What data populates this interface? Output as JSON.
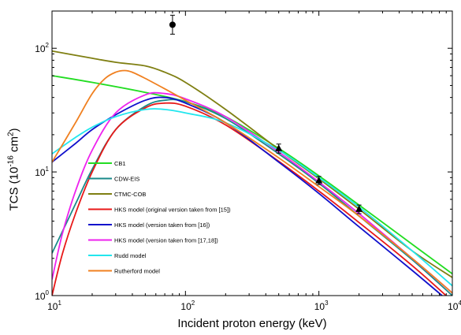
{
  "chart_data": {
    "type": "line",
    "xscale": "log",
    "yscale": "log",
    "xlim": [
      10,
      10000
    ],
    "ylim": [
      1,
      200
    ],
    "xticks": [
      {
        "value": 10,
        "base": "10",
        "exp": "1"
      },
      {
        "value": 100,
        "base": "10",
        "exp": "2"
      },
      {
        "value": 1000,
        "base": "10",
        "exp": "3"
      },
      {
        "value": 10000,
        "base": "10",
        "exp": "4"
      }
    ],
    "yticks": [
      {
        "value": 1,
        "base": "10",
        "exp": "0"
      },
      {
        "value": 10,
        "base": "10",
        "exp": "1"
      },
      {
        "value": 100,
        "base": "10",
        "exp": "2"
      }
    ],
    "xlabel": "Incident proton energy (keV)",
    "ylabel": {
      "text": "TCS (10",
      "exp": "-16",
      "unit": " cm",
      "unit_exp": "2",
      "close": ")"
    },
    "legend_placement": "left-middle",
    "series": [
      {
        "name": "CB1",
        "color": "#22dd22",
        "x": [
          10,
          20,
          50,
          100,
          200,
          500,
          1000,
          2000,
          5000,
          10000
        ],
        "y": [
          60,
          53,
          44,
          37,
          28,
          15.5,
          9.3,
          5.4,
          2.6,
          1.5
        ]
      },
      {
        "name": "CDW-EIS",
        "color": "#1a8a8a",
        "x": [
          10,
          15,
          20,
          30,
          50,
          70,
          100,
          200,
          500,
          1000,
          2000,
          5000,
          10000
        ],
        "y": [
          2.2,
          5.5,
          10.5,
          22,
          34,
          38,
          37,
          27,
          14,
          8.1,
          4.4,
          1.95,
          1.0
        ]
      },
      {
        "name": "CTMC-COB",
        "color": "#7f7f12",
        "x": [
          10,
          20,
          30,
          50,
          70,
          100,
          200,
          500,
          1000,
          2000,
          5000,
          10000
        ],
        "y": [
          95,
          83,
          77,
          72,
          64,
          53,
          32,
          15.2,
          8.8,
          5.0,
          2.3,
          1.4
        ]
      },
      {
        "name": "HKS model (original version taken from [15])",
        "color": "#e81818",
        "x": [
          10,
          12,
          15,
          20,
          30,
          50,
          70,
          100,
          200,
          500,
          1000,
          2000,
          5000,
          10000
        ],
        "y": [
          1.0,
          2.2,
          4.6,
          10,
          22,
          33,
          36,
          34,
          24,
          12.2,
          7.0,
          3.9,
          1.75,
          0.9
        ]
      },
      {
        "name": "HKS model (version taken from [16])",
        "color": "#1010cc",
        "x": [
          10,
          15,
          20,
          30,
          50,
          70,
          100,
          200,
          500,
          1000,
          2000,
          5000,
          10000
        ],
        "y": [
          12,
          17,
          22,
          29,
          38,
          40,
          36,
          25,
          12,
          6.7,
          3.6,
          1.6,
          0.85
        ]
      },
      {
        "name": "HKS model (version taken from [17,18])",
        "color": "#ee22ee",
        "x": [
          10,
          12,
          15,
          20,
          30,
          50,
          70,
          100,
          200,
          500,
          1000,
          2000,
          5000,
          10000
        ],
        "y": [
          1.35,
          3.2,
          7.0,
          15,
          30,
          42,
          43,
          39,
          28,
          14.5,
          8.3,
          4.6,
          2.0,
          1.05
        ]
      },
      {
        "name": "Rudd model",
        "color": "#22e6ee",
        "x": [
          10,
          15,
          20,
          30,
          50,
          70,
          100,
          200,
          500,
          1000,
          2000,
          5000,
          10000
        ],
        "y": [
          14,
          19,
          23,
          28,
          32,
          32,
          30,
          25,
          15,
          9.0,
          5.2,
          2.3,
          1.2
        ]
      },
      {
        "name": "Rutherford model",
        "color": "#f08020",
        "x": [
          10,
          15,
          20,
          25,
          30,
          35,
          40,
          50,
          70,
          100,
          200,
          500,
          1000,
          2000,
          5000,
          10000
        ],
        "y": [
          12,
          25,
          43,
          57,
          64,
          66,
          64,
          57,
          47,
          38,
          25,
          13,
          7.6,
          4.4,
          2.0,
          1.05
        ]
      }
    ],
    "points": [
      {
        "marker": "circle",
        "x": 80,
        "y": 155,
        "yerr_low": 130,
        "yerr_high": 185
      },
      {
        "marker": "triangle",
        "x": 500,
        "y": 15.5,
        "yerr_low": 14.2,
        "yerr_high": 16.8
      },
      {
        "marker": "triangle",
        "x": 1000,
        "y": 8.5,
        "yerr_low": 7.9,
        "yerr_high": 9.2
      },
      {
        "marker": "triangle",
        "x": 2000,
        "y": 5.0,
        "yerr_low": 4.6,
        "yerr_high": 5.4
      }
    ]
  }
}
